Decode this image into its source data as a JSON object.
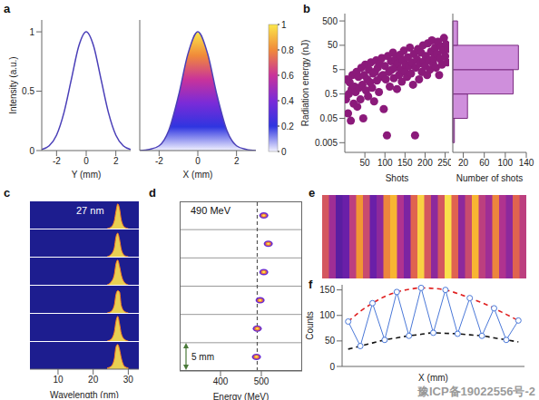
{
  "watermark": "豫ICP备19022556号-2",
  "chart_data": [
    {
      "title": "a",
      "type": "line",
      "xlabel": "Y (mm)",
      "ylabel": "Intensity (a.u.)",
      "x": [
        -3,
        -2.5,
        -2,
        -1.5,
        -1,
        -0.5,
        0,
        0.5,
        1,
        1.5,
        2,
        2.5,
        3
      ],
      "values": [
        0.01,
        0.04,
        0.13,
        0.32,
        0.6,
        0.88,
        1,
        0.88,
        0.6,
        0.32,
        0.13,
        0.04,
        0.01
      ],
      "xlim": [
        -3,
        3
      ],
      "xticks": [
        -2,
        0,
        2
      ],
      "ylim": [
        0,
        1.1
      ],
      "yticks": [
        0,
        0.5,
        1
      ],
      "color": "#4a3fb8"
    },
    {
      "type": "area",
      "xlabel": "X (mm)",
      "x": [
        -3,
        -2.5,
        -2,
        -1.5,
        -1,
        -0.5,
        0,
        0.5,
        1,
        1.5,
        2,
        2.5,
        3
      ],
      "values": [
        0,
        0.01,
        0.04,
        0.17,
        0.46,
        0.82,
        1,
        0.82,
        0.46,
        0.17,
        0.04,
        0.01,
        0
      ],
      "xlim": [
        -3,
        3
      ],
      "xticks": [
        -2,
        0,
        2
      ],
      "ylim": [
        0,
        1.1
      ],
      "tick_labels": "x",
      "color": "#4a3fb8"
    },
    {
      "type": "colorbar",
      "ylim": [
        0,
        1
      ],
      "yticks": [
        0,
        0.2,
        0.4,
        0.6,
        0.8,
        1
      ],
      "colors": [
        "#f2f2ff",
        "#2f35e0",
        "#7a2bd8",
        "#c9339a",
        "#f08a3a",
        "#fbe64a"
      ]
    },
    {
      "title": "b",
      "type": "scatter",
      "xlabel": "Shots",
      "ylabel": "Radiation energy (nJ)",
      "x": [
        3,
        5,
        8,
        10,
        12,
        15,
        17,
        19,
        22,
        24,
        27,
        29,
        31,
        34,
        36,
        39,
        41,
        44,
        46,
        48,
        51,
        53,
        56,
        58,
        60,
        63,
        65,
        68,
        70,
        73,
        75,
        78,
        80,
        82,
        85,
        87,
        90,
        92,
        95,
        97,
        100,
        102,
        105,
        107,
        110,
        112,
        115,
        117,
        120,
        122,
        125,
        127,
        130,
        132,
        135,
        137,
        140,
        142,
        145,
        147,
        150,
        152,
        155,
        157,
        160,
        162,
        165,
        167,
        170,
        172,
        175,
        177,
        180,
        182,
        185,
        187,
        190,
        192,
        195,
        197,
        200,
        202,
        205,
        207,
        210,
        212,
        215,
        217,
        220,
        222,
        225,
        227,
        230,
        232,
        235,
        237,
        240,
        242,
        245,
        247,
        250,
        252,
        255,
        257
      ],
      "values": [
        0.3,
        2,
        0.08,
        0.5,
        1.5,
        0.04,
        0.8,
        3,
        0.2,
        1,
        0.6,
        4,
        0.15,
        2.5,
        0.9,
        0.3,
        6,
        1.2,
        0.05,
        3,
        8,
        0.7,
        2,
        0.4,
        5,
        1.5,
        10,
        0.9,
        3.5,
        0.25,
        4,
        12,
        1.8,
        6,
        0.6,
        9,
        2.5,
        15,
        3,
        0.12,
        7,
        2,
        0.01,
        18,
        4,
        1,
        11,
        5,
        25,
        2.2,
        6,
        14,
        0.8,
        9,
        3,
        20,
        5,
        1.6,
        12,
        30,
        4,
        8,
        2.5,
        16,
        7,
        40,
        3.5,
        10,
        1.2,
        22,
        0.01,
        6,
        13,
        35,
        2,
        9,
        25,
        4,
        50,
        11,
        7,
        18,
        3,
        60,
        12,
        5,
        28,
        80,
        9,
        15,
        40,
        6,
        22,
        70,
        3,
        14,
        45,
        8,
        30,
        100,
        18,
        55,
        10,
        35
      ],
      "xlim": [
        0,
        260
      ],
      "xticks": [
        50,
        100,
        150,
        200,
        250
      ],
      "ylim": [
        0.002,
        1000
      ],
      "yticks": [
        0.005,
        0.05,
        0.5,
        5,
        50,
        500
      ],
      "log": "y",
      "color": "#8b1a7a"
    },
    {
      "type": "histogram",
      "orientation": "horizontal",
      "xlabel": "Number of shots",
      "bins": [
        0.005,
        0.05,
        0.5,
        5,
        50,
        500
      ],
      "counts": [
        3,
        28,
        115,
        125,
        9
      ],
      "xlim": [
        0,
        140
      ],
      "xticks": [
        20,
        60,
        100,
        140
      ],
      "ylim": [
        0.002,
        1000
      ],
      "log": "y",
      "tick_labels": "x",
      "color": "#cf8fdc"
    },
    {
      "title": "c",
      "type": "area",
      "xlabel": "Wavelength (nm)",
      "annotation": "27 nm",
      "x": [
        24,
        25,
        26,
        26.5,
        27,
        27.5,
        28,
        29,
        30
      ],
      "series": [
        {
          "values": [
            0,
            0.05,
            0.3,
            0.7,
            1,
            0.8,
            0.35,
            0.05,
            0
          ]
        },
        {
          "values": [
            0,
            0.08,
            0.35,
            0.8,
            0.95,
            0.7,
            0.3,
            0.04,
            0
          ]
        },
        {
          "values": [
            0,
            0.1,
            0.4,
            0.85,
            1,
            0.75,
            0.4,
            0.08,
            0
          ]
        },
        {
          "values": [
            0,
            0.05,
            0.3,
            0.75,
            0.9,
            0.85,
            0.3,
            0.05,
            0
          ]
        },
        {
          "values": [
            0,
            0.06,
            0.35,
            0.8,
            1,
            0.7,
            0.3,
            0.06,
            0
          ]
        },
        {
          "values": [
            0.05,
            0.1,
            0.4,
            0.9,
            1,
            0.8,
            0.45,
            0.1,
            0.05
          ]
        }
      ],
      "xlim": [
        2,
        33
      ],
      "xticks": [
        10,
        20,
        30
      ],
      "ylim": [
        0,
        1.1
      ],
      "color": "#ffe34d"
    },
    {
      "title": "d",
      "type": "scatter",
      "xlabel": "Energy (MeV)",
      "annotation": {
        "text": "490 MeV",
        "value": 490
      },
      "scale_label": "5 mm",
      "x": [
        506,
        517,
        506,
        497,
        490,
        488
      ],
      "xlim": [
        300,
        600
      ],
      "xticks": [
        400,
        500
      ]
    },
    {
      "title": "e",
      "type": "heatmap",
      "cells": [
        0.55,
        0.35,
        0.15,
        0.2,
        0.45,
        0.75,
        0.5,
        0.2,
        0.3,
        0.7,
        0.85,
        0.4,
        0.25,
        0.6,
        0.95,
        0.55,
        0.3,
        0.55,
        1,
        0.6,
        0.3,
        0.5,
        0.85,
        0.45,
        0.35,
        0.7,
        0.4,
        0.3,
        0.6,
        0.45
      ],
      "color_range": [
        0,
        1
      ],
      "colors": [
        "#2a1a8c",
        "#6a1fa8",
        "#b0338f",
        "#e0634f",
        "#f7a72a",
        "#f9e04b"
      ]
    },
    {
      "title": "f",
      "type": "line",
      "xlabel": "X (mm)",
      "ylabel": "Counts",
      "x": [
        0,
        1,
        2,
        3,
        4,
        5,
        6,
        7,
        8,
        9,
        10,
        11,
        12,
        13,
        14
      ],
      "series": [
        {
          "color": "#4a78d8",
          "marker": "circle",
          "line_style": "solid",
          "values": [
            88,
            40,
            124,
            52,
            146,
            60,
            154,
            66,
            150,
            64,
            134,
            60,
            114,
            52,
            90
          ]
        },
        {
          "color": "#e02020",
          "marker": "none",
          "line_style": "dashed",
          "values": [
            88,
            108,
            124,
            137,
            146,
            151,
            154,
            153,
            150,
            143,
            134,
            125,
            114,
            102,
            90
          ]
        },
        {
          "color": "#111111",
          "marker": "none",
          "line_style": "dashed",
          "values": [
            34,
            40,
            46,
            52,
            56,
            60,
            63,
            66,
            65,
            64,
            62,
            60,
            56,
            52,
            48
          ]
        }
      ],
      "xlim": [
        -0.5,
        14.5
      ],
      "ylim": [
        0,
        160
      ],
      "yticks": [
        0,
        50,
        100,
        150
      ],
      "tick_labels": "y"
    }
  ]
}
